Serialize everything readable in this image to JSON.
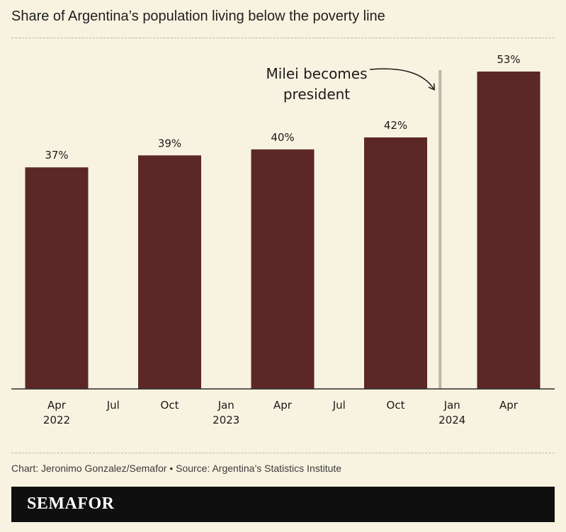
{
  "title": "Share of Argentina’s population living below the poverty line",
  "credit": "Chart: Jeronimo Gonzalez/Semafor • Source: Argentina’s Statistics Institute",
  "brand": "SEMAFOR",
  "colors": {
    "background": "#f8f3e0",
    "bar": "#5c2727",
    "marker_line": "#b9b7a8",
    "axis": "#2b2b2b"
  },
  "chart_data": {
    "type": "bar",
    "title": "Share of Argentina’s population living below the poverty line",
    "x_ticks": [
      {
        "label": "Apr",
        "year": "2022"
      },
      {
        "label": "Jul",
        "year": ""
      },
      {
        "label": "Oct",
        "year": ""
      },
      {
        "label": "Jan",
        "year": "2023"
      },
      {
        "label": "Apr",
        "year": ""
      },
      {
        "label": "Jul",
        "year": ""
      },
      {
        "label": "Oct",
        "year": ""
      },
      {
        "label": "Jan",
        "year": "2024"
      },
      {
        "label": "Apr",
        "year": ""
      }
    ],
    "bars": [
      {
        "tick": 0,
        "value": 37,
        "label": "37%"
      },
      {
        "tick": 2,
        "value": 39,
        "label": "39%"
      },
      {
        "tick": 4,
        "value": 40,
        "label": "40%"
      },
      {
        "tick": 6,
        "value": 42,
        "label": "42%"
      },
      {
        "tick": 8,
        "value": 53,
        "label": "53%"
      }
    ],
    "ylim": [
      0,
      53
    ],
    "grid": false,
    "annotation": {
      "lines": [
        "Milei becomes",
        "president"
      ],
      "tick": 7
    }
  }
}
